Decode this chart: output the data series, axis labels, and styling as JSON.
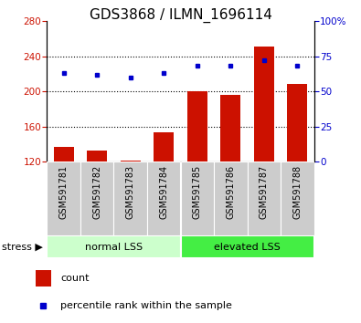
{
  "title": "GDS3868 / ILMN_1696114",
  "samples": [
    "GSM591781",
    "GSM591782",
    "GSM591783",
    "GSM591784",
    "GSM591785",
    "GSM591786",
    "GSM591787",
    "GSM591788"
  ],
  "counts": [
    137,
    132,
    121,
    153,
    200,
    196,
    251,
    208
  ],
  "percentiles": [
    63,
    62,
    60,
    63,
    68,
    68,
    72,
    68
  ],
  "ylim_left": [
    120,
    280
  ],
  "ylim_right": [
    0,
    100
  ],
  "yticks_left": [
    120,
    160,
    200,
    240,
    280
  ],
  "yticks_right": [
    0,
    25,
    50,
    75,
    100
  ],
  "bar_color": "#cc1100",
  "dot_color": "#0000cc",
  "groups": [
    {
      "label": "normal LSS",
      "start": 0,
      "end": 4,
      "color": "#ccffcc"
    },
    {
      "label": "elevated LSS",
      "start": 4,
      "end": 8,
      "color": "#44ee44"
    }
  ],
  "stress_label": "stress ▶",
  "legend_count_label": "count",
  "legend_pct_label": "percentile rank within the sample",
  "title_fontsize": 11,
  "tick_fontsize": 7.5,
  "sample_fontsize": 7,
  "bar_width": 0.6,
  "bg_color": "#ffffff",
  "plot_bg_color": "#ffffff",
  "xlabel_area_color": "#cccccc",
  "group1_color": "#ccffcc",
  "group2_color": "#44ee44"
}
